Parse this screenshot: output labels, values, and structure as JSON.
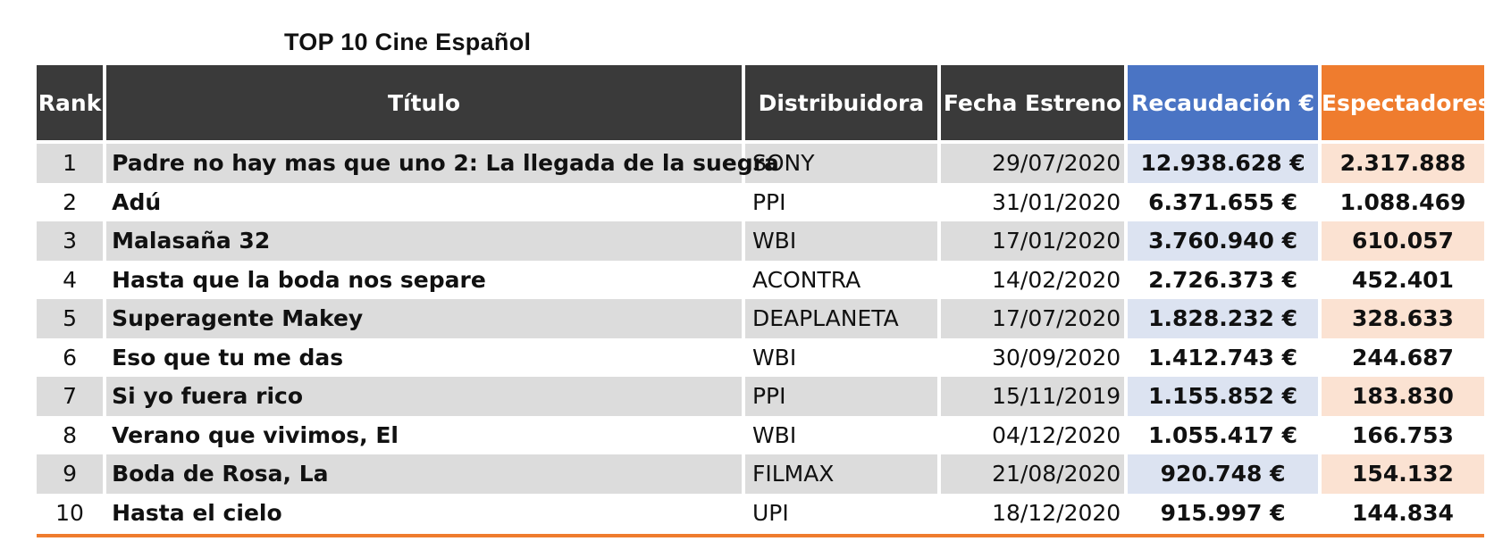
{
  "title": "TOP 10 Cine Español",
  "headers": {
    "rank": "Rank",
    "titulo": "Título",
    "distribuidora": "Distribuidora",
    "fecha": "Fecha Estreno",
    "recaudacion": "Recaudación €",
    "espectadores": "Espectadores"
  },
  "colors": {
    "header_dark": "#3a3a3a",
    "recaudacion_accent": "#4a74c4",
    "espectadores_accent": "#ef7c2e"
  },
  "rows": [
    {
      "rank": "1",
      "titulo": "Padre no hay mas que uno 2: La llegada de la suegra",
      "distribuidora": "SONY",
      "fecha": "29/07/2020",
      "recaudacion": "12.938.628 €",
      "espectadores": "2.317.888"
    },
    {
      "rank": "2",
      "titulo": "Adú",
      "distribuidora": "PPI",
      "fecha": "31/01/2020",
      "recaudacion": "6.371.655 €",
      "espectadores": "1.088.469"
    },
    {
      "rank": "3",
      "titulo": "Malasaña 32",
      "distribuidora": "WBI",
      "fecha": "17/01/2020",
      "recaudacion": "3.760.940 €",
      "espectadores": "610.057"
    },
    {
      "rank": "4",
      "titulo": "Hasta que la boda nos separe",
      "distribuidora": "ACONTRA",
      "fecha": "14/02/2020",
      "recaudacion": "2.726.373 €",
      "espectadores": "452.401"
    },
    {
      "rank": "5",
      "titulo": "Superagente Makey",
      "distribuidora": "DEAPLANETA",
      "fecha": "17/07/2020",
      "recaudacion": "1.828.232 €",
      "espectadores": "328.633"
    },
    {
      "rank": "6",
      "titulo": "Eso que tu me das",
      "distribuidora": "WBI",
      "fecha": "30/09/2020",
      "recaudacion": "1.412.743 €",
      "espectadores": "244.687"
    },
    {
      "rank": "7",
      "titulo": "Si yo fuera rico",
      "distribuidora": "PPI",
      "fecha": "15/11/2019",
      "recaudacion": "1.155.852 €",
      "espectadores": "183.830"
    },
    {
      "rank": "8",
      "titulo": "Verano que vivimos, El",
      "distribuidora": "WBI",
      "fecha": "04/12/2020",
      "recaudacion": "1.055.417 €",
      "espectadores": "166.753"
    },
    {
      "rank": "9",
      "titulo": "Boda de Rosa, La",
      "distribuidora": "FILMAX",
      "fecha": "21/08/2020",
      "recaudacion": "920.748 €",
      "espectadores": "154.132"
    },
    {
      "rank": "10",
      "titulo": "Hasta el cielo",
      "distribuidora": "UPI",
      "fecha": "18/12/2020",
      "recaudacion": "915.997 €",
      "espectadores": "144.834"
    }
  ]
}
